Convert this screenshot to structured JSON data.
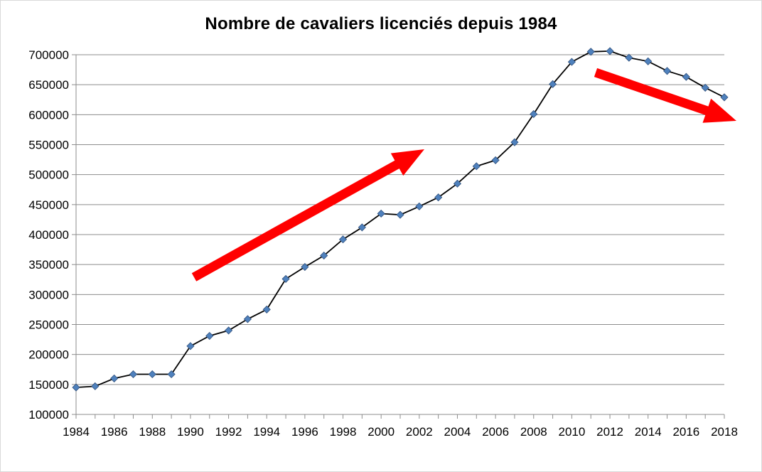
{
  "chart_data": {
    "type": "line",
    "title": "Nombre de cavaliers licenciés depuis 1984",
    "xlabel": "",
    "ylabel": "",
    "xlim": [
      1984,
      2018
    ],
    "ylim": [
      100000,
      700000
    ],
    "x_ticks": [
      "1984",
      "1986",
      "1988",
      "1990",
      "1992",
      "1994",
      "1996",
      "1998",
      "2000",
      "2002",
      "2004",
      "2006",
      "2008",
      "2010",
      "2012",
      "2014",
      "2016",
      "2018"
    ],
    "y_ticks": [
      "100000",
      "150000",
      "200000",
      "250000",
      "300000",
      "350000",
      "400000",
      "450000",
      "500000",
      "550000",
      "600000",
      "650000",
      "700000"
    ],
    "grid": true,
    "legend": "none",
    "series": [
      {
        "color": "#000000",
        "marker_color": "#4f81bd",
        "marker": "diamond",
        "x": [
          1984,
          1985,
          1986,
          1987,
          1988,
          1989,
          1990,
          1991,
          1992,
          1993,
          1994,
          1995,
          1996,
          1997,
          1998,
          1999,
          2000,
          2001,
          2002,
          2003,
          2004,
          2005,
          2006,
          2007,
          2008,
          2009,
          2010,
          2011,
          2012,
          2013,
          2014,
          2015,
          2016,
          2017,
          2018
        ],
        "values": [
          145000,
          147000,
          160000,
          167000,
          167000,
          167000,
          214000,
          231000,
          240000,
          259000,
          275000,
          326000,
          346000,
          365000,
          392000,
          412000,
          435000,
          433000,
          447000,
          462000,
          485000,
          514000,
          524000,
          554000,
          601000,
          651000,
          688000,
          705000,
          706000,
          695000,
          689000,
          673000,
          663000,
          645000,
          629000
        ]
      }
    ],
    "annotations": [
      {
        "type": "arrow",
        "color": "#ff0000",
        "meaning": "upward trend"
      },
      {
        "type": "arrow",
        "color": "#ff0000",
        "meaning": "downward trend"
      }
    ]
  }
}
